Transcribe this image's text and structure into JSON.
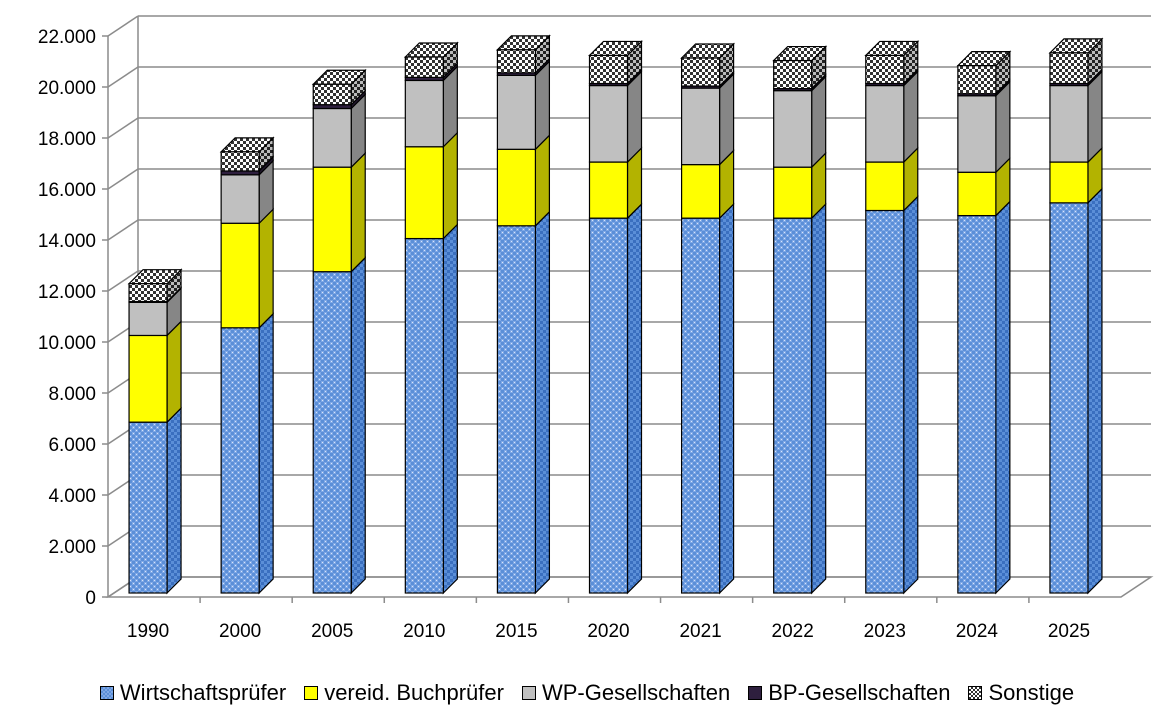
{
  "chart_data": {
    "type": "bar",
    "stacked": true,
    "style": "3d",
    "categories": [
      "1990",
      "2000",
      "2005",
      "2010",
      "2015",
      "2020",
      "2021",
      "2022",
      "2023",
      "2024",
      "2025"
    ],
    "series": [
      {
        "name": "Wirtschaftsprüfer",
        "color": "#5b8fd8",
        "pattern": "fine-check",
        "values": [
          6700,
          10400,
          12600,
          13900,
          14400,
          14700,
          14700,
          14700,
          15000,
          14800,
          15300
        ]
      },
      {
        "name": "vereid. Buchprüfer",
        "color": "#ffff00",
        "pattern": "solid",
        "values": [
          3400,
          4100,
          4100,
          3600,
          3000,
          2200,
          2100,
          2000,
          1900,
          1700,
          1600
        ]
      },
      {
        "name": "WP-Gesellschaften",
        "color": "#c0c0c0",
        "pattern": "solid",
        "values": [
          1300,
          1900,
          2300,
          2600,
          2900,
          3000,
          3000,
          3000,
          3000,
          3000,
          3000
        ]
      },
      {
        "name": "BP-Gesellschaften",
        "color": "#2e1f3e",
        "pattern": "solid",
        "values": [
          30,
          150,
          150,
          120,
          100,
          80,
          80,
          80,
          80,
          80,
          80
        ]
      },
      {
        "name": "Sonstige",
        "color": "#808080",
        "pattern": "checker",
        "values": [
          700,
          750,
          800,
          800,
          900,
          1100,
          1100,
          1100,
          1100,
          1100,
          1200
        ]
      }
    ],
    "yticks": [
      "0",
      "2.000",
      "4.000",
      "6.000",
      "8.000",
      "10.000",
      "12.000",
      "14.000",
      "16.000",
      "18.000",
      "20.000",
      "22.000"
    ],
    "ylim": [
      0,
      22000
    ],
    "grid": true,
    "legend_position": "bottom",
    "title": "",
    "xlabel": "",
    "ylabel": ""
  }
}
